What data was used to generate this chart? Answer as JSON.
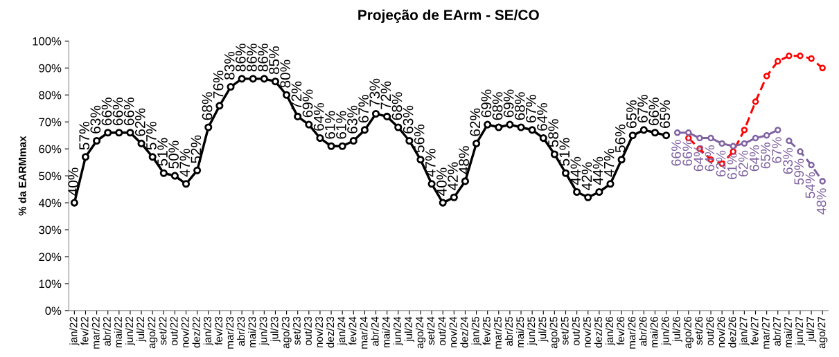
{
  "chart_data": {
    "type": "line",
    "title": "Projeção de EArm - SE/CO",
    "ylabel": "% da EARMmax",
    "categories": [
      "jan/22",
      "fev/22",
      "mar/22",
      "abr/22",
      "mai/22",
      "jun/22",
      "jul/22",
      "ago/22",
      "set/22",
      "out/22",
      "nov/22",
      "dez/22",
      "jan/23",
      "fev/23",
      "mar/23",
      "abr/23",
      "mai/23",
      "jun/23",
      "jul/23",
      "ago/23",
      "set/23",
      "out/23",
      "nov/23",
      "dez/23",
      "jan/24",
      "fev/24",
      "mar/24",
      "abr/24",
      "mai/24",
      "jun/24",
      "jul/24",
      "ago/24",
      "set/24",
      "out/24",
      "nov/24",
      "dez/24",
      "jan/25",
      "fev/25",
      "mar/25",
      "abr/25",
      "mai/25",
      "jun/25",
      "jul/25",
      "ago/25",
      "set/25",
      "out/25",
      "nov/25",
      "dez/25",
      "jan/26",
      "fev/26",
      "mar/26",
      "abr/26",
      "mai/26",
      "jun/26",
      "jul/26",
      "ago/26",
      "set/26",
      "out/26",
      "nov/26",
      "dez/26",
      "jan/27",
      "fev/27",
      "mar/27",
      "abr/27",
      "mai/27",
      "jun/27",
      "jul/27",
      "ago/27"
    ],
    "ylim": [
      0,
      100
    ],
    "yticks": [
      {
        "value": 0,
        "label": "0%"
      },
      {
        "value": 10,
        "label": "10%"
      },
      {
        "value": 20,
        "label": "20%"
      },
      {
        "value": 30,
        "label": "30%"
      },
      {
        "value": 40,
        "label": "40%"
      },
      {
        "value": 50,
        "label": "50%"
      },
      {
        "value": 60,
        "label": "60%"
      },
      {
        "value": 70,
        "label": "70%"
      },
      {
        "value": 80,
        "label": "80%"
      },
      {
        "value": 90,
        "label": "90%"
      },
      {
        "value": 100,
        "label": "100%"
      }
    ],
    "grid": false,
    "legend": false,
    "marker": "circle",
    "series": [
      {
        "color": "#000000",
        "line_style": "solid",
        "values": [
          40,
          57,
          63,
          66,
          66,
          66,
          62,
          57,
          51,
          50,
          47,
          52,
          68,
          76,
          83,
          86,
          86,
          86,
          85,
          80,
          72,
          69,
          64,
          61,
          61,
          63,
          67,
          73,
          72,
          68,
          63,
          56,
          47,
          40,
          42,
          48,
          62,
          69,
          68,
          69,
          68,
          67,
          64,
          58,
          51,
          44,
          42,
          44,
          47,
          56,
          65,
          67,
          66,
          65,
          null,
          null,
          null,
          null,
          null,
          null,
          null,
          null,
          null,
          null,
          null,
          null,
          null,
          null
        ],
        "value_labels": [
          "40%",
          "57%",
          "63%",
          "66%",
          "66%",
          "66%",
          "62%",
          "57%",
          "51%",
          "50%",
          "47%",
          "52%",
          "68%",
          "76%",
          "83%",
          "86%",
          "86%",
          "86%",
          "85%",
          "80%",
          "72%",
          "69%",
          "64%",
          "61%",
          "61%",
          "63%",
          "67%",
          "73%",
          "72%",
          "68%",
          "63%",
          "56%",
          "47%",
          "40%",
          "42%",
          "48%",
          "62%",
          "69%",
          "68%",
          "69%",
          "68%",
          "67%",
          "64%",
          "58%",
          "51%",
          "44%",
          "42%",
          "44%",
          "47%",
          "56%",
          "65%",
          "67%",
          "66%",
          "65%",
          null,
          null,
          null,
          null,
          null,
          null,
          null,
          null,
          null,
          null,
          null,
          null,
          null,
          null
        ]
      },
      {
        "color": "#8064a2",
        "line_style": "solid",
        "values": [
          null,
          null,
          null,
          null,
          null,
          null,
          null,
          null,
          null,
          null,
          null,
          null,
          null,
          null,
          null,
          null,
          null,
          null,
          null,
          null,
          null,
          null,
          null,
          null,
          null,
          null,
          null,
          null,
          null,
          null,
          null,
          null,
          null,
          null,
          null,
          null,
          null,
          null,
          null,
          null,
          null,
          null,
          null,
          null,
          null,
          null,
          null,
          null,
          null,
          null,
          null,
          null,
          null,
          null,
          66,
          66,
          64,
          64,
          62,
          61,
          62,
          64,
          65,
          67,
          null,
          null,
          null,
          null
        ],
        "value_labels": [
          null,
          null,
          null,
          null,
          null,
          null,
          null,
          null,
          null,
          null,
          null,
          null,
          null,
          null,
          null,
          null,
          null,
          null,
          null,
          null,
          null,
          null,
          null,
          null,
          null,
          null,
          null,
          null,
          null,
          null,
          null,
          null,
          null,
          null,
          null,
          null,
          null,
          null,
          null,
          null,
          null,
          null,
          null,
          null,
          null,
          null,
          null,
          null,
          null,
          null,
          null,
          null,
          null,
          null,
          "66%",
          "66%",
          "64%",
          "64%",
          "62%",
          "61%",
          "62%",
          "64%",
          "65%",
          "67%",
          null,
          null,
          null,
          null
        ]
      },
      {
        "color": "#8064a2",
        "line_style": "dashed",
        "values": [
          null,
          null,
          null,
          null,
          null,
          null,
          null,
          null,
          null,
          null,
          null,
          null,
          null,
          null,
          null,
          null,
          null,
          null,
          null,
          null,
          null,
          null,
          null,
          null,
          null,
          null,
          null,
          null,
          null,
          null,
          null,
          null,
          null,
          null,
          null,
          null,
          null,
          null,
          null,
          null,
          null,
          null,
          null,
          null,
          null,
          null,
          null,
          null,
          null,
          null,
          null,
          null,
          null,
          null,
          null,
          null,
          null,
          null,
          null,
          null,
          null,
          null,
          null,
          null,
          63,
          59,
          54,
          48
        ],
        "value_labels": [
          null,
          null,
          null,
          null,
          null,
          null,
          null,
          null,
          null,
          null,
          null,
          null,
          null,
          null,
          null,
          null,
          null,
          null,
          null,
          null,
          null,
          null,
          null,
          null,
          null,
          null,
          null,
          null,
          null,
          null,
          null,
          null,
          null,
          null,
          null,
          null,
          null,
          null,
          null,
          null,
          null,
          null,
          null,
          null,
          null,
          null,
          null,
          null,
          null,
          null,
          null,
          null,
          null,
          null,
          null,
          null,
          null,
          null,
          null,
          null,
          null,
          null,
          null,
          null,
          "63%",
          "59%",
          "54%",
          "48%"
        ]
      },
      {
        "color": "#ff0000",
        "line_style": "dashed",
        "values": [
          null,
          null,
          null,
          null,
          null,
          null,
          null,
          null,
          null,
          null,
          null,
          null,
          null,
          null,
          null,
          null,
          null,
          null,
          null,
          null,
          null,
          null,
          null,
          null,
          null,
          null,
          null,
          null,
          null,
          null,
          null,
          null,
          null,
          null,
          null,
          null,
          null,
          null,
          null,
          null,
          null,
          null,
          null,
          null,
          null,
          null,
          null,
          null,
          null,
          null,
          null,
          null,
          null,
          null,
          null,
          64,
          60,
          56,
          54.5,
          59,
          67,
          77.5,
          87,
          92.5,
          94.5,
          94.5,
          93.5,
          90
        ]
      }
    ]
  }
}
